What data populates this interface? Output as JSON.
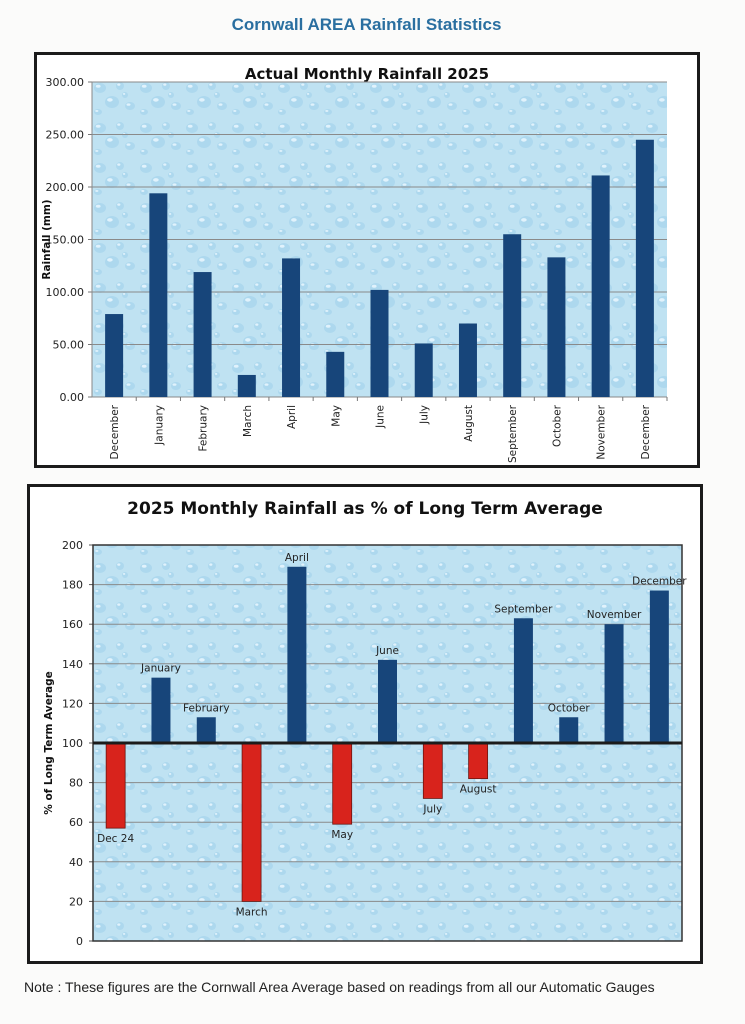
{
  "page": {
    "title": "Cornwall AREA Rainfall Statistics",
    "note": "Note : These figures are the Cornwall Area Average based on readings from all our Automatic Gauges"
  },
  "colors": {
    "title": "#2a6fa0",
    "bar_blue": "#17457a",
    "bar_red": "#d8231c",
    "plot_bg": "#bfe2f2",
    "gridline": "#8a8a8a"
  },
  "chart_data": [
    {
      "type": "bar",
      "title": "Actual Monthly Rainfall 2025",
      "xlabel": "",
      "ylabel": "Rainfall (mm)",
      "ylim": [
        0,
        300
      ],
      "yticks": [
        "0.00",
        "50.00",
        "100.00",
        "150.00",
        "200.00",
        "250.00",
        "300.00"
      ],
      "ytick_values": [
        0,
        50,
        100,
        150,
        200,
        250,
        300
      ],
      "grid": true,
      "categories": [
        "December",
        "January",
        "February",
        "March",
        "April",
        "May",
        "June",
        "July",
        "August",
        "September",
        "October",
        "November",
        "December"
      ],
      "values": [
        79,
        194,
        119,
        21,
        132,
        43,
        102,
        51,
        70,
        155,
        133,
        211,
        245
      ]
    },
    {
      "type": "bar",
      "title": "2025 Monthly Rainfall as % of Long Term Average",
      "xlabel": "",
      "ylabel": "% of Long Term Average",
      "ylim": [
        0,
        200
      ],
      "baseline": 100,
      "yticks": [
        "0",
        "20",
        "40",
        "60",
        "80",
        "100",
        "120",
        "140",
        "160",
        "180",
        "200"
      ],
      "ytick_values": [
        0,
        20,
        40,
        60,
        80,
        100,
        120,
        140,
        160,
        180,
        200
      ],
      "grid": true,
      "categories": [
        "Dec  24",
        "January",
        "February",
        "March",
        "April",
        "May",
        "June",
        "July",
        "August",
        "September",
        "October",
        "November",
        "December"
      ],
      "values": [
        57,
        133,
        113,
        20,
        189,
        59,
        142,
        72,
        82,
        163,
        113,
        160,
        177
      ]
    }
  ]
}
